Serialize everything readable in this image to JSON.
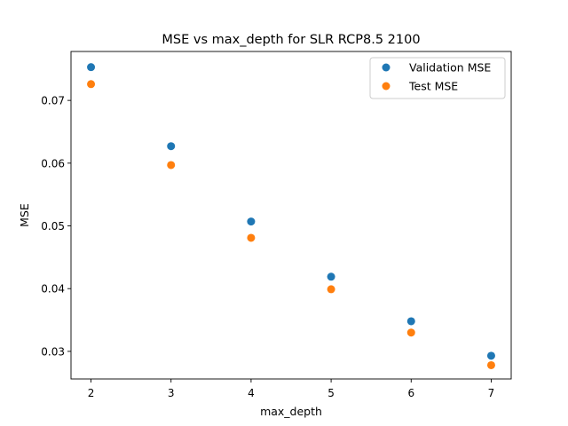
{
  "chart_data": {
    "type": "scatter",
    "title": "MSE vs max_depth for SLR RCP8.5 2100",
    "xlabel": "max_depth",
    "ylabel": "MSE",
    "xlim": [
      1.75,
      7.25
    ],
    "ylim": [
      0.0256,
      0.0778
    ],
    "xticks": [
      2,
      3,
      4,
      5,
      6,
      7
    ],
    "yticks": [
      0.03,
      0.04,
      0.05,
      0.06,
      0.07
    ],
    "grid": false,
    "legend_position": "upper-right",
    "series": [
      {
        "name": "Validation MSE",
        "color": "#1f77b4",
        "x": [
          2,
          3,
          4,
          5,
          6,
          7
        ],
        "y": [
          0.0753,
          0.0627,
          0.0507,
          0.0419,
          0.0348,
          0.0293
        ]
      },
      {
        "name": "Test MSE",
        "color": "#ff7f0e",
        "x": [
          2,
          3,
          4,
          5,
          6,
          7
        ],
        "y": [
          0.0726,
          0.0597,
          0.0481,
          0.0399,
          0.033,
          0.0278
        ]
      }
    ]
  }
}
